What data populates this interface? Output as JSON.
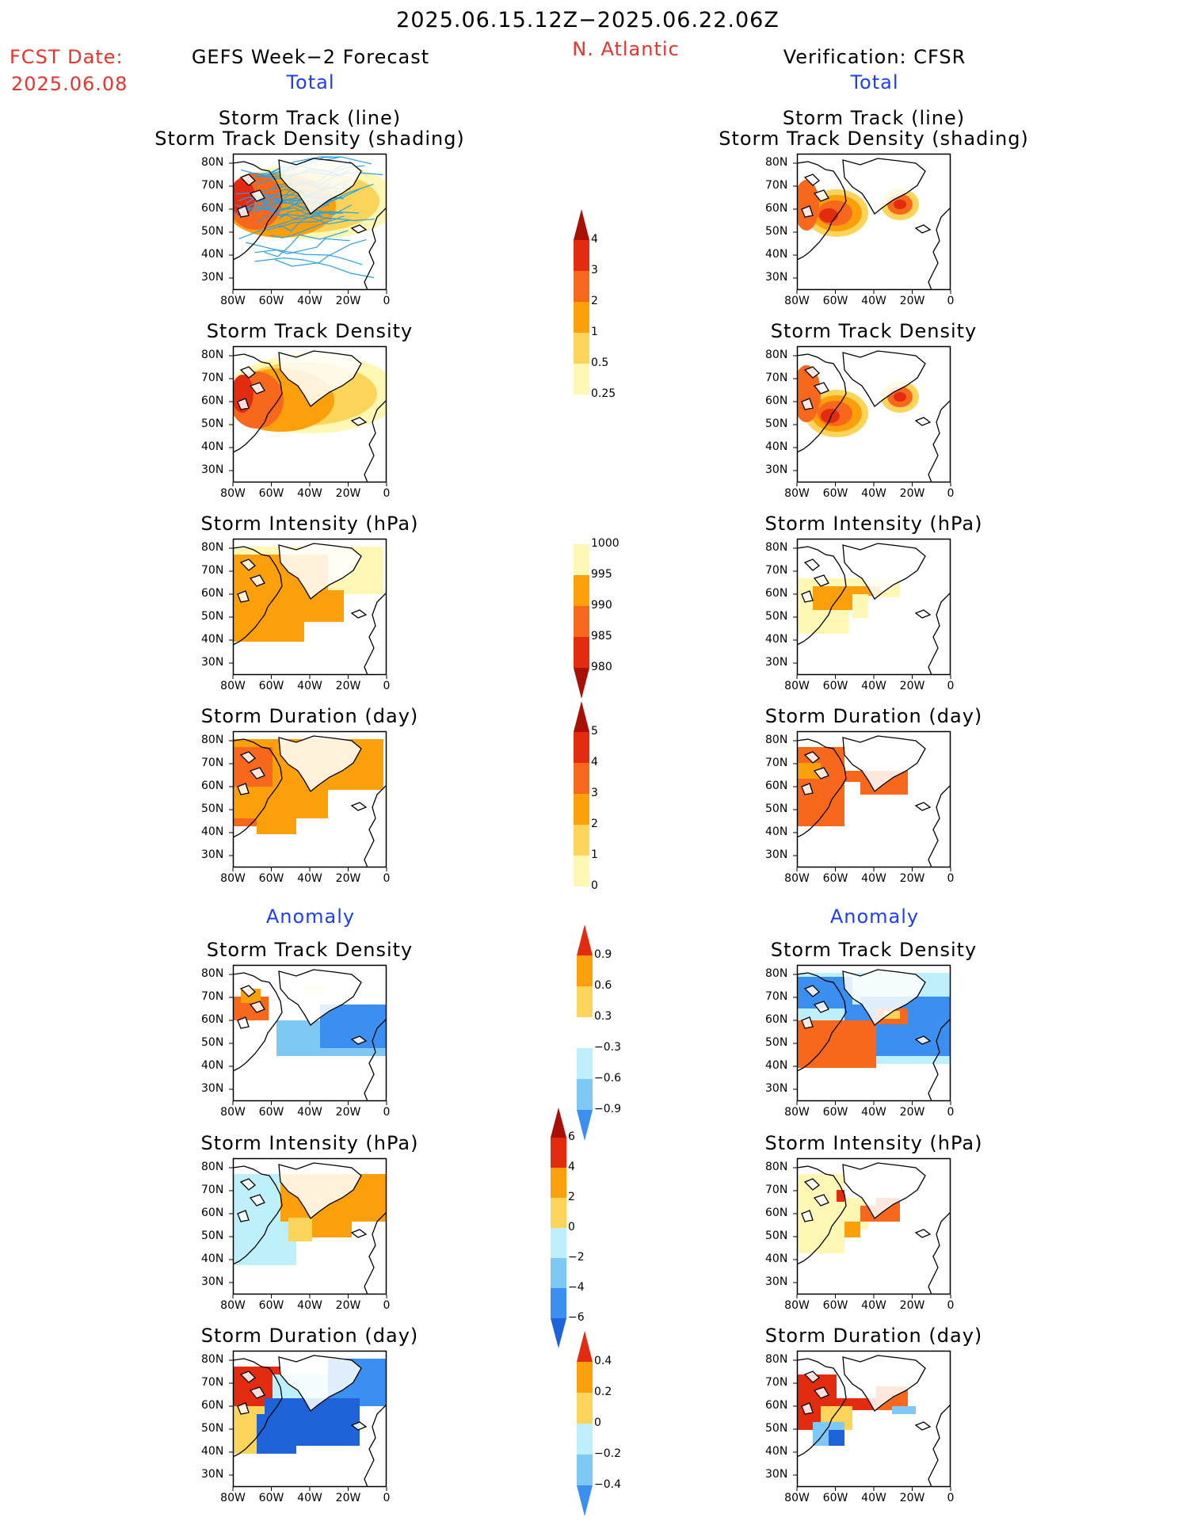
{
  "header": {
    "period": "2025.06.15.12Z−2025.06.22.06Z",
    "region": "N. Atlantic",
    "fcst_label": "FCST Date:",
    "fcst_date": "2025.06.08",
    "left_title": "GEFS Week−2 Forecast",
    "right_title": "Verification: CFSR",
    "total_left": "Total",
    "total_right": "Total",
    "anomaly_left": "Anomaly",
    "anomaly_right": "Anomaly"
  },
  "axes": {
    "lat_labels": [
      "80N",
      "70N",
      "60N",
      "50N",
      "40N",
      "30N"
    ],
    "lon_labels": [
      "80W",
      "60W",
      "40W",
      "20W",
      "0"
    ]
  },
  "panel_titles": {
    "track": [
      "Storm Track (line)",
      "Storm Track Density (shading)"
    ],
    "density": "Storm Track Density",
    "intensity": "Storm Intensity (hPa)",
    "duration": "Storm Duration (day)"
  },
  "colorbars": {
    "density_total": [
      "4",
      "3",
      "2",
      "1",
      "0.5",
      "0.25"
    ],
    "intensity_total": [
      "1000",
      "995",
      "990",
      "985",
      "980"
    ],
    "duration_total": [
      "5",
      "4",
      "3",
      "2",
      "1",
      "0"
    ],
    "density_anom": [
      "0.9",
      "0.6",
      "0.3",
      "−0.3",
      "−0.6",
      "−0.9"
    ],
    "intensity_anom": [
      "6",
      "4",
      "2",
      "0",
      "−2",
      "−4",
      "−6"
    ],
    "duration_anom": [
      "0.4",
      "0.2",
      "0",
      "−0.2",
      "−0.4"
    ]
  },
  "colors": {
    "warm": [
      "#fff8b4",
      "#fcd45a",
      "#fba00a",
      "#f8681c",
      "#e32b10",
      "#a80f05"
    ],
    "cool": [
      "#bdf0fb",
      "#7ec8f5",
      "#3b8ff0",
      "#1e63d8"
    ],
    "track_line": "#2aa0e6"
  }
}
